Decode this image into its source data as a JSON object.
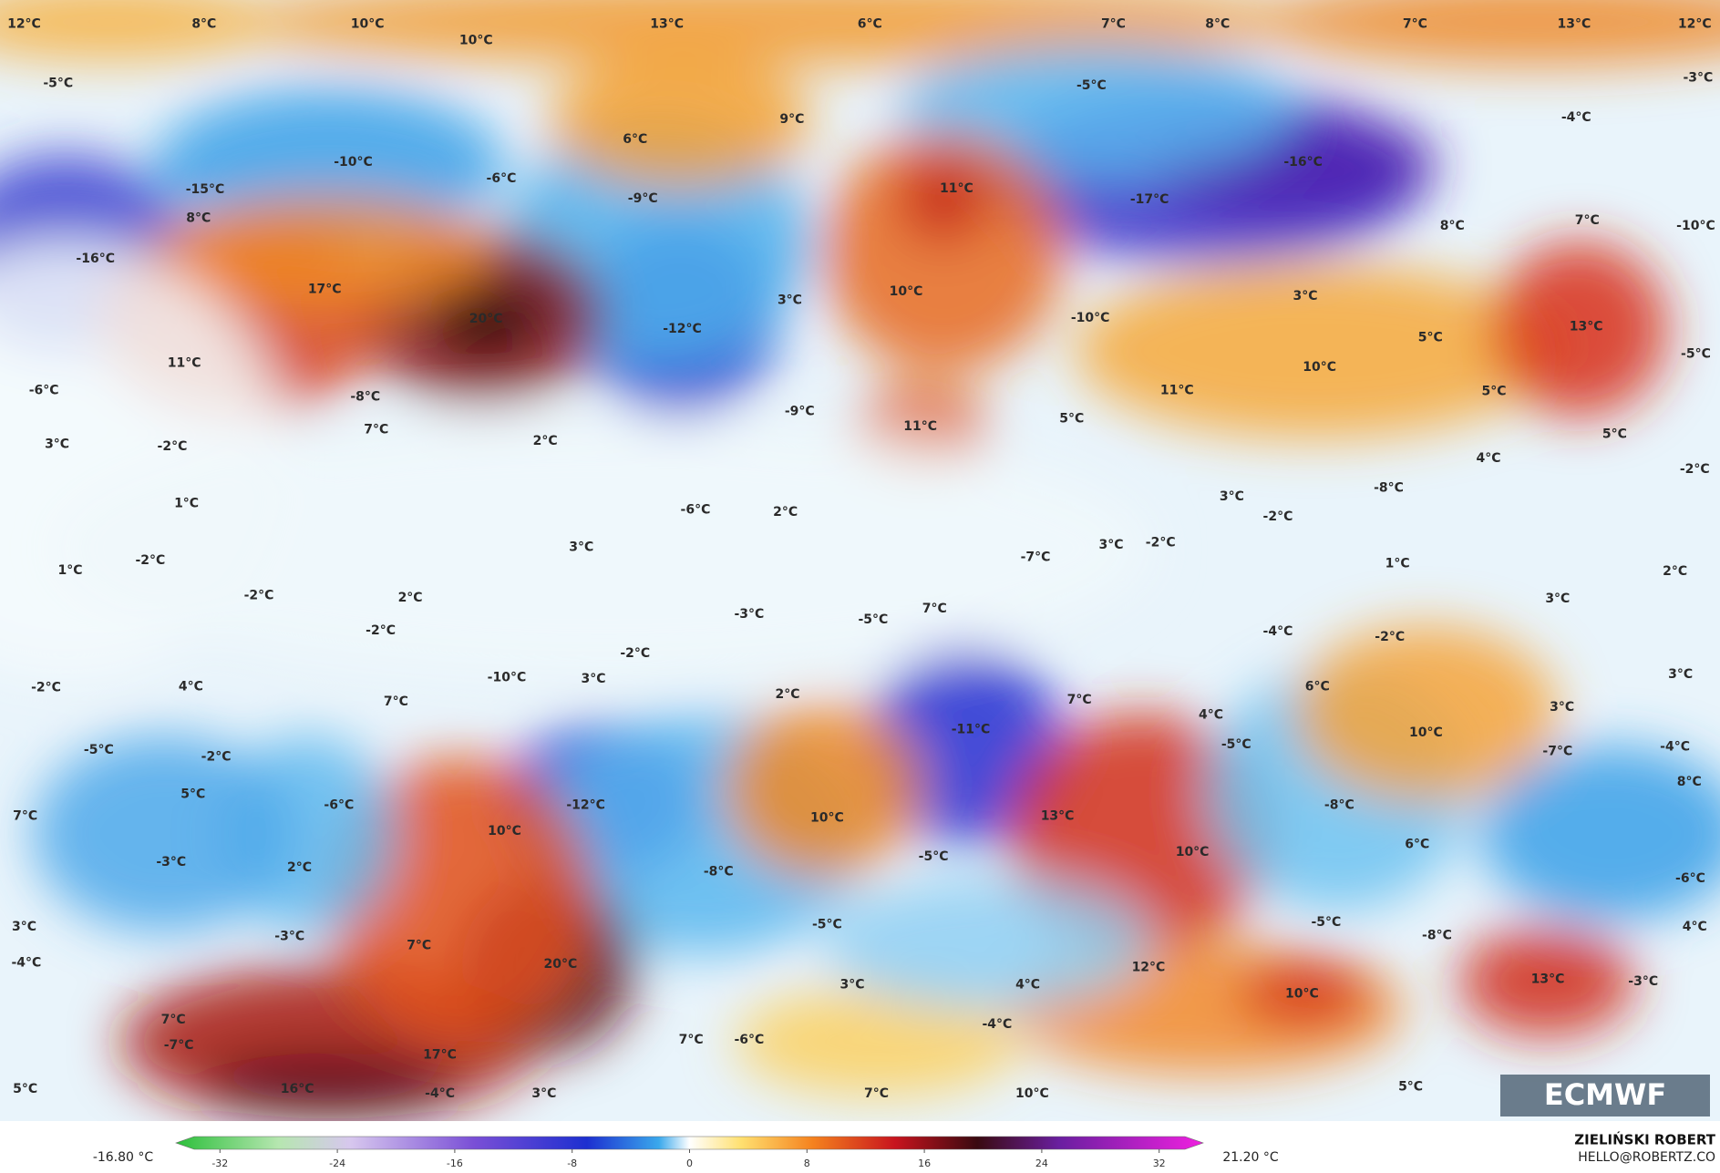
{
  "map_labels": [
    "12°C",
    "8°C",
    "10°C",
    "13°C",
    "6°C",
    "7°C",
    "8°C",
    "7°C",
    "13°C",
    "12°C",
    "10°C",
    "-5°C",
    "-5°C",
    "-3°C",
    "9°C",
    "-4°C",
    "6°C",
    "-10°C",
    "-16°C",
    "-6°C",
    "-15°C",
    "11°C",
    "-9°C",
    "-17°C",
    "8°C",
    "8°C",
    "7°C",
    "-10°C",
    "-16°C",
    "17°C",
    "3°C",
    "10°C",
    "3°C",
    "20°C",
    "-10°C",
    "13°C",
    "-12°C",
    "5°C",
    "11°C",
    "10°C",
    "-5°C",
    "-6°C",
    "11°C",
    "5°C",
    "-8°C",
    "-9°C",
    "5°C",
    "11°C",
    "7°C",
    "3°C",
    "-2°C",
    "2°C",
    "5°C",
    "4°C",
    "-2°C",
    "-8°C",
    "3°C",
    "1°C",
    "-6°C",
    "2°C",
    "-2°C",
    "3°C",
    "3°C",
    "-2°C",
    "-2°C",
    "-7°C",
    "1°C",
    "1°C",
    "2°C",
    "-2°C",
    "2°C",
    "3°C",
    "-3°C",
    "7°C",
    "-5°C",
    "-2°C",
    "-4°C",
    "-2°C",
    "-2°C",
    "-2°C",
    "4°C",
    "-10°C",
    "3°C",
    "6°C",
    "3°C",
    "2°C",
    "7°C",
    "7°C",
    "3°C",
    "4°C",
    "-11°C",
    "10°C",
    "-5°C",
    "-2°C",
    "-5°C",
    "-7°C",
    "-4°C",
    "8°C",
    "5°C",
    "-6°C",
    "-12°C",
    "-8°C",
    "7°C",
    "10°C",
    "13°C",
    "10°C",
    "6°C",
    "10°C",
    "-3°C",
    "-5°C",
    "2°C",
    "-8°C",
    "-6°C",
    "-5°C",
    "-5°C",
    "3°C",
    "4°C",
    "-3°C",
    "-8°C",
    "7°C",
    "-4°C",
    "20°C",
    "12°C",
    "13°C",
    "3°C",
    "4°C",
    "-3°C",
    "10°C",
    "7°C",
    "-4°C",
    "-7°C",
    "7°C",
    "-6°C",
    "17°C",
    "5°C",
    "16°C",
    "-4°C",
    "3°C",
    "7°C",
    "10°C",
    "5°C"
  ],
  "colorbar": {
    "min_label": "-16.80 °C",
    "max_label": "21.20 °C",
    "ticks": [
      -32,
      -24,
      -16,
      -8,
      0,
      8,
      16,
      24,
      32
    ],
    "lim": [
      -35,
      35
    ]
  },
  "logo": "ECMWF",
  "author": "ZIELIŃSKI ROBERT",
  "contact": "HELLO@ROBERTZ.CO"
}
